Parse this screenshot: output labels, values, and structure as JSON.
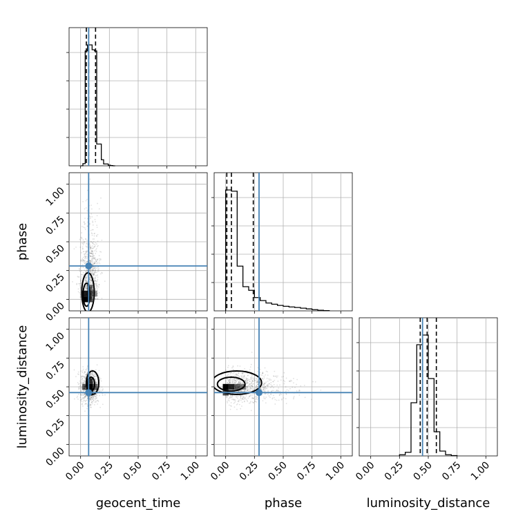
{
  "figure": {
    "type": "corner_plot",
    "parameters": [
      "geocent_time",
      "phase",
      "luminosity_distance"
    ],
    "truth_color": "#4682b4"
  },
  "chart_data": {
    "type": "corner",
    "parameters": [
      "geocent_time",
      "phase",
      "luminosity_distance"
    ],
    "axis_labels": {
      "geocent_time": "geocent_time",
      "phase": "phase",
      "luminosity_distance": "luminosity_distance"
    },
    "range": [
      -0.1,
      1.1
    ],
    "ticks": [
      0.0,
      0.25,
      0.5,
      0.75,
      1.0
    ],
    "tick_labels": [
      "0.00",
      "0.25",
      "0.50",
      "0.75",
      "1.00"
    ],
    "grid": true,
    "truths": {
      "geocent_time": 0.07,
      "phase": 0.29,
      "luminosity_distance": 0.45
    },
    "quantiles": {
      "geocent_time": [
        0.05,
        0.07,
        0.13
      ],
      "phase": [
        0.01,
        0.05,
        0.24
      ],
      "luminosity_distance": [
        0.43,
        0.49,
        0.57
      ]
    },
    "histograms": {
      "geocent_time": {
        "bin_edges": [
          0.0,
          0.02,
          0.04,
          0.06,
          0.08,
          0.1,
          0.12,
          0.14,
          0.16,
          0.18,
          0.2,
          0.22,
          0.24,
          0.26,
          0.28,
          0.3
        ],
        "counts": [
          0,
          18,
          950,
          1000,
          1000,
          960,
          950,
          180,
          180,
          50,
          15,
          15,
          5,
          2,
          0
        ]
      },
      "phase": {
        "bin_edges": [
          0.0,
          0.05,
          0.1,
          0.15,
          0.2,
          0.25,
          0.3,
          0.35,
          0.4,
          0.45,
          0.5,
          0.55,
          0.6,
          0.65,
          0.7,
          0.75,
          0.8,
          0.85,
          0.9
        ],
        "counts": [
          1000,
          990,
          370,
          200,
          170,
          110,
          85,
          65,
          55,
          45,
          38,
          32,
          28,
          22,
          16,
          10,
          5,
          2
        ]
      },
      "luminosity_distance": {
        "bin_edges": [
          0.25,
          0.3,
          0.35,
          0.4,
          0.45,
          0.5,
          0.55,
          0.6,
          0.65,
          0.7,
          0.75
        ],
        "counts": [
          10,
          30,
          440,
          920,
          1000,
          640,
          200,
          40,
          10,
          3
        ]
      }
    },
    "samples_2d": [
      {
        "x": "geocent_time",
        "y": "phase",
        "density_cells": [
          {
            "x": 0.04,
            "y": 0.0,
            "level": 1.0
          },
          {
            "x": 0.04,
            "y": 0.05,
            "level": 0.85
          },
          {
            "x": 0.08,
            "y": 0.0,
            "level": 0.6
          },
          {
            "x": 0.08,
            "y": 0.05,
            "level": 0.5
          },
          {
            "x": 0.08,
            "y": 0.1,
            "level": 0.35
          },
          {
            "x": 0.12,
            "y": 0.05,
            "level": 0.2
          }
        ],
        "scatter_center": [
          0.08,
          0.2
        ],
        "scatter_spread": [
          0.04,
          0.3
        ]
      },
      {
        "x": "geocent_time",
        "y": "luminosity_distance",
        "density_cells": [
          {
            "x": 0.08,
            "y": 0.5,
            "level": 1.0
          },
          {
            "x": 0.08,
            "y": 0.45,
            "level": 0.8
          },
          {
            "x": 0.08,
            "y": 0.55,
            "level": 0.7
          },
          {
            "x": 0.04,
            "y": 0.5,
            "level": 0.45
          },
          {
            "x": 0.12,
            "y": 0.5,
            "level": 0.4
          }
        ],
        "scatter_center": [
          0.08,
          0.5
        ],
        "scatter_spread": [
          0.04,
          0.07
        ]
      },
      {
        "x": "phase",
        "y": "luminosity_distance",
        "density_cells": [
          {
            "x": 0.0,
            "y": 0.5,
            "level": 1.0
          },
          {
            "x": 0.05,
            "y": 0.5,
            "level": 0.8
          },
          {
            "x": 0.0,
            "y": 0.45,
            "level": 0.6
          },
          {
            "x": 0.1,
            "y": 0.5,
            "level": 0.45
          },
          {
            "x": 0.15,
            "y": 0.5,
            "level": 0.3
          }
        ],
        "scatter_center": [
          0.25,
          0.5
        ],
        "scatter_spread": [
          0.25,
          0.07
        ]
      }
    ]
  }
}
